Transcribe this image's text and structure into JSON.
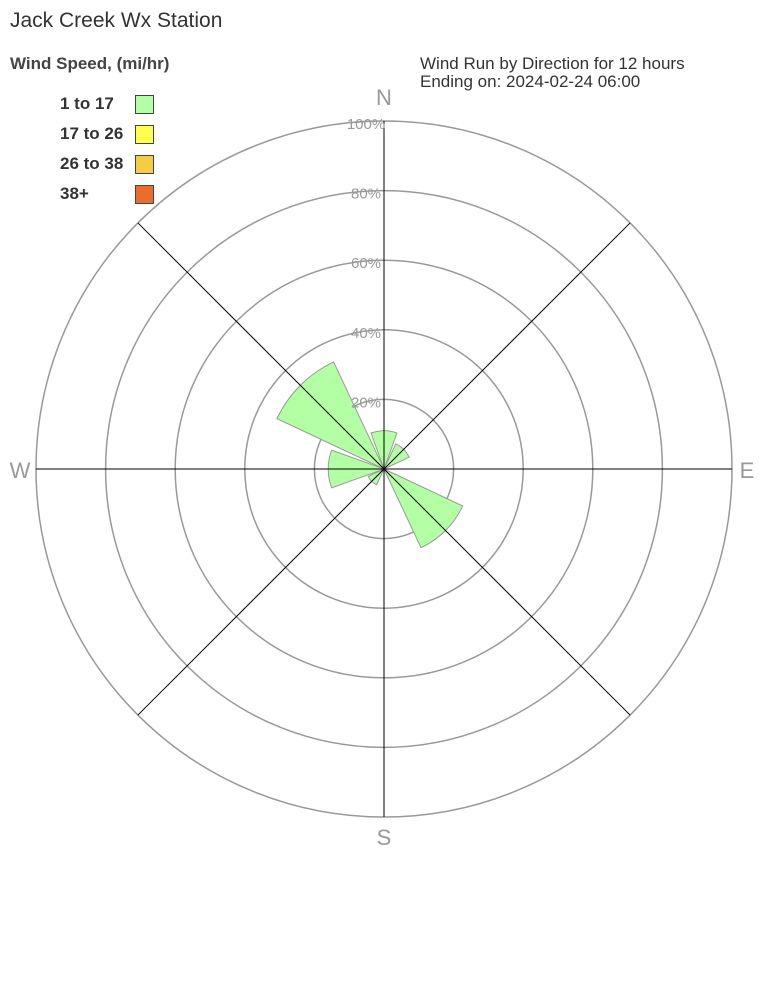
{
  "title": "Jack Creek Wx Station",
  "legend_title": "Wind Speed, (mi/hr)",
  "info": {
    "line1": "Wind Run by Direction for 12 hours",
    "line2": "Ending on: 2024-02-24 06:00"
  },
  "chart_data": {
    "type": "wind-rose",
    "directions": [
      "N",
      "NE",
      "E",
      "SE",
      "S",
      "SW",
      "W",
      "NW"
    ],
    "compass_labels": {
      "N": "N",
      "E": "E",
      "S": "S",
      "W": "W"
    },
    "ring_ticks": [
      20,
      40,
      60,
      80,
      100
    ],
    "ring_labels": [
      "20%",
      "40%",
      "60%",
      "80%",
      "100%"
    ],
    "rlim": [
      0,
      100
    ],
    "series": [
      {
        "name": "1 to 17",
        "color": "#b3ffa3",
        "values": [
          11,
          8,
          0,
          25,
          0,
          5,
          16,
          34
        ]
      },
      {
        "name": "17 to 26",
        "color": "#ffff4d",
        "values": [
          0,
          0,
          0,
          0,
          0,
          0,
          0,
          0
        ]
      },
      {
        "name": "26 to 38",
        "color": "#f7cc45",
        "values": [
          0,
          0,
          0,
          0,
          0,
          0,
          0,
          0
        ]
      },
      {
        "name": "38+",
        "color": "#ec6c2e",
        "values": [
          0,
          0,
          0,
          0,
          0,
          0,
          0,
          0
        ]
      }
    ]
  }
}
